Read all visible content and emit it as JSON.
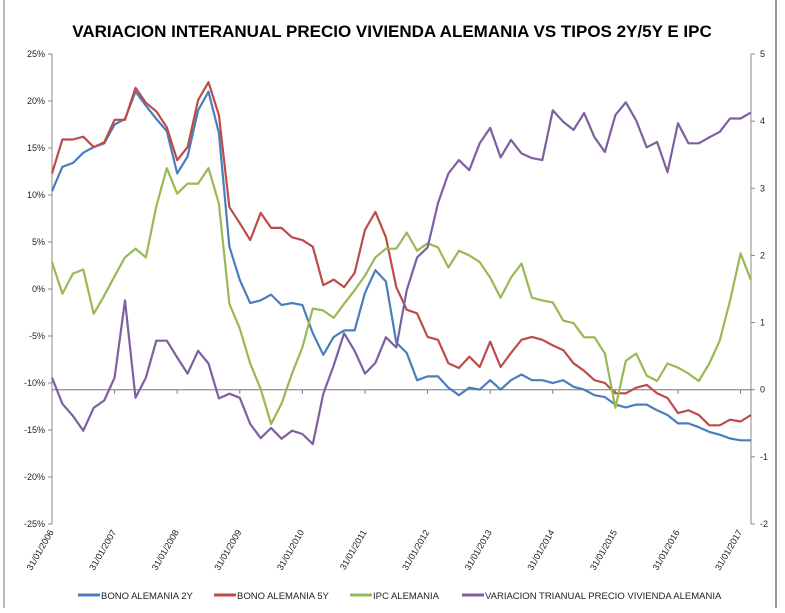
{
  "chart_data": {
    "type": "line",
    "title": "VARIACION INTERANUAL PRECIO VIVIENDA ALEMANIA VS TIPOS 2Y/5Y E IPC",
    "x": [
      "2006-01",
      "2006-03",
      "2006-05",
      "2006-07",
      "2006-09",
      "2006-11",
      "2007-01",
      "2007-03",
      "2007-05",
      "2007-07",
      "2007-09",
      "2007-11",
      "2008-01",
      "2008-03",
      "2008-05",
      "2008-07",
      "2008-09",
      "2008-11",
      "2009-01",
      "2009-03",
      "2009-05",
      "2009-07",
      "2009-09",
      "2009-11",
      "2010-01",
      "2010-03",
      "2010-05",
      "2010-07",
      "2010-09",
      "2010-11",
      "2011-01",
      "2011-03",
      "2011-05",
      "2011-07",
      "2011-09",
      "2011-11",
      "2012-01",
      "2012-03",
      "2012-05",
      "2012-07",
      "2012-09",
      "2012-11",
      "2013-01",
      "2013-03",
      "2013-05",
      "2013-07",
      "2013-09",
      "2013-11",
      "2014-01",
      "2014-03",
      "2014-05",
      "2014-07",
      "2014-09",
      "2014-11",
      "2015-01",
      "2015-03",
      "2015-05",
      "2015-07",
      "2015-09",
      "2015-11",
      "2016-01",
      "2016-03",
      "2016-05",
      "2016-07",
      "2016-09",
      "2016-11",
      "2017-01",
      "2017-03"
    ],
    "x_tick_labels": [
      "31/01/2006",
      "31/01/2007",
      "31/01/2008",
      "31/01/2009",
      "31/01/2010",
      "31/01/2011",
      "31/01/2012",
      "31/01/2013",
      "31/01/2014",
      "31/01/2015",
      "31/01/2016",
      "31/01/2017"
    ],
    "y_left": {
      "ticks": [
        "25%",
        "20%",
        "15%",
        "10%",
        "5%",
        "0%",
        "-5%",
        "-10%",
        "-15%",
        "-20%",
        "-25%"
      ],
      "ylim": [
        -25,
        25
      ]
    },
    "y_right": {
      "ticks": [
        "5",
        "4",
        "3",
        "2",
        "1",
        "0",
        "-1",
        "-2"
      ],
      "ylim": [
        -2,
        5
      ]
    },
    "grid": false,
    "legend_position": "bottom",
    "series": [
      {
        "name": "BONO ALEMANIA 2Y",
        "axis": "left",
        "color": "#4a7ebb",
        "values": [
          10.4,
          13.0,
          13.4,
          14.5,
          15.1,
          15.5,
          17.5,
          18.1,
          21.0,
          19.5,
          18.1,
          16.8,
          12.3,
          14.1,
          19.0,
          21.0,
          16.6,
          4.5,
          0.96,
          -1.5,
          -1.2,
          -0.6,
          -1.7,
          -1.5,
          -1.7,
          -4.7,
          -7.0,
          -5.1,
          -4.4,
          -4.4,
          -0.4,
          2.0,
          0.8,
          -5.7,
          -6.8,
          -9.7,
          -9.3,
          -9.3,
          -10.5,
          -11.3,
          -10.5,
          -10.7,
          -9.7,
          -10.7,
          -9.7,
          -9.1,
          -9.7,
          -9.7,
          -10.0,
          -9.7,
          -10.4,
          -10.7,
          -11.3,
          -11.5,
          -12.3,
          -12.6,
          -12.3,
          -12.3,
          -12.9,
          -13.4,
          -14.3,
          -14.3,
          -14.7,
          -15.2,
          -15.5,
          -15.9,
          -16.1,
          -16.1
        ]
      },
      {
        "name": "BONO ALEMANIA 5Y",
        "axis": "left",
        "color": "#be4b48",
        "values": [
          12.3,
          15.9,
          15.9,
          16.2,
          15.1,
          15.6,
          18.0,
          18.0,
          21.4,
          19.8,
          18.9,
          17.2,
          13.7,
          15.1,
          20.1,
          22.0,
          18.5,
          8.7,
          7.0,
          5.2,
          8.1,
          6.5,
          6.5,
          5.5,
          5.2,
          4.5,
          0.4,
          1.0,
          0.2,
          1.7,
          6.3,
          8.2,
          5.5,
          0.2,
          -2.2,
          -2.6,
          -5.1,
          -5.4,
          -7.9,
          -8.4,
          -7.2,
          -8.3,
          -5.6,
          -8.3,
          -6.8,
          -5.4,
          -5.1,
          -5.4,
          -6.0,
          -6.5,
          -7.9,
          -8.7,
          -9.7,
          -10.0,
          -11.1,
          -11.1,
          -10.5,
          -10.2,
          -11.1,
          -11.6,
          -13.2,
          -12.9,
          -13.4,
          -14.5,
          -14.5,
          -13.9,
          -14.1,
          -13.4
        ]
      },
      {
        "name": "IPC ALEMANIA",
        "axis": "right",
        "color": "#98b954",
        "values": [
          1.9,
          1.43,
          1.73,
          1.79,
          1.13,
          1.4,
          1.69,
          1.97,
          2.1,
          1.97,
          2.73,
          3.3,
          2.92,
          3.07,
          3.07,
          3.3,
          2.77,
          1.28,
          0.91,
          0.39,
          0.01,
          -0.51,
          -0.21,
          0.24,
          0.63,
          1.21,
          1.18,
          1.07,
          1.28,
          1.48,
          1.7,
          1.97,
          2.1,
          2.1,
          2.34,
          2.07,
          2.18,
          2.12,
          1.82,
          2.07,
          2.0,
          1.9,
          1.67,
          1.37,
          1.67,
          1.88,
          1.37,
          1.33,
          1.3,
          1.03,
          0.99,
          0.78,
          0.78,
          0.54,
          -0.27,
          0.43,
          0.54,
          0.21,
          0.13,
          0.39,
          0.33,
          0.24,
          0.13,
          0.39,
          0.73,
          1.33,
          2.03,
          1.63
        ]
      },
      {
        "name": "VARIACION TRIANUAL PRECIO VIVIENDA ALEMANIA",
        "axis": "right",
        "color": "#7d60a0",
        "values": [
          0.18,
          -0.21,
          -0.39,
          -0.61,
          -0.27,
          -0.16,
          0.18,
          1.33,
          -0.12,
          0.18,
          0.73,
          0.73,
          0.48,
          0.24,
          0.58,
          0.39,
          -0.13,
          -0.06,
          -0.12,
          -0.51,
          -0.72,
          -0.57,
          -0.73,
          -0.61,
          -0.66,
          -0.81,
          -0.06,
          0.36,
          0.84,
          0.58,
          0.24,
          0.4,
          0.78,
          0.63,
          1.48,
          1.97,
          2.12,
          2.78,
          3.22,
          3.42,
          3.27,
          3.67,
          3.9,
          3.46,
          3.72,
          3.52,
          3.45,
          3.42,
          4.16,
          3.99,
          3.87,
          4.12,
          3.76,
          3.54,
          4.09,
          4.28,
          4.01,
          3.61,
          3.69,
          3.24,
          3.97,
          3.67,
          3.67,
          3.76,
          3.84,
          4.04,
          4.04,
          4.13
        ]
      }
    ]
  }
}
